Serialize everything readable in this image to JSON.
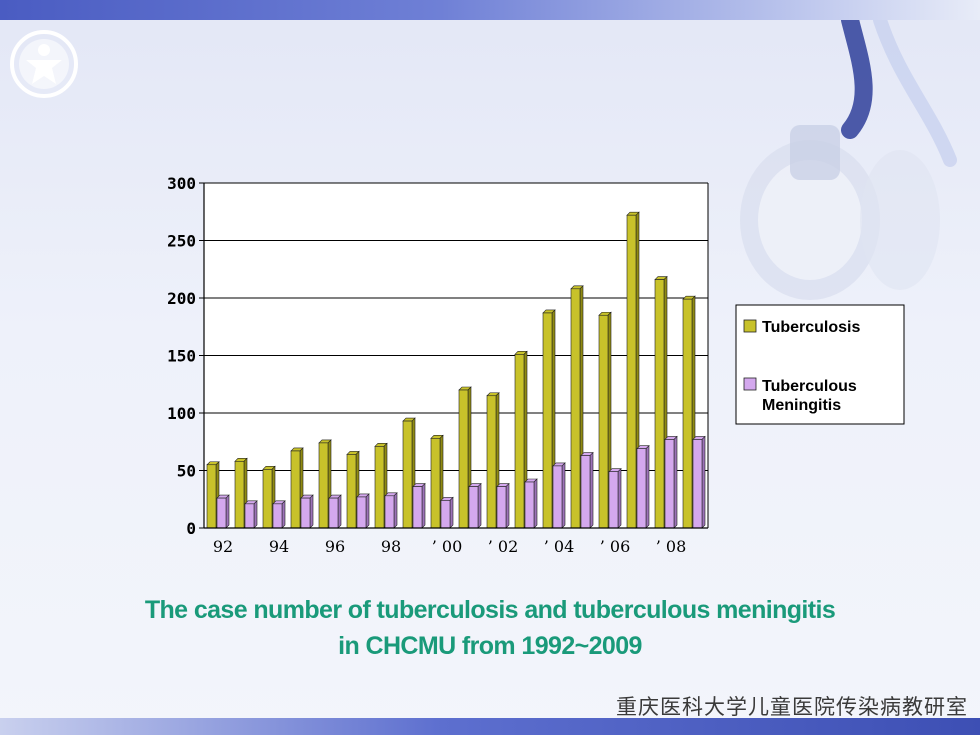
{
  "chart_data": {
    "type": "bar",
    "categories": [
      "92",
      "93",
      "94",
      "95",
      "96",
      "97",
      "98",
      "99",
      "'00",
      "'01",
      "'02",
      "'03",
      "'04",
      "'05",
      "'06",
      "'07",
      "'08",
      "'09"
    ],
    "tick_labels": [
      "92",
      "94",
      "96",
      "98",
      "’ 00",
      "’ 02",
      "’ 04",
      "’ 06",
      "’ 08"
    ],
    "series": [
      {
        "name": "Tuberculosis",
        "values": [
          55,
          58,
          51,
          67,
          74,
          64,
          71,
          93,
          78,
          120,
          115,
          151,
          187,
          208,
          185,
          272,
          216,
          199
        ]
      },
      {
        "name": "Tuberculous Meningitis",
        "values": [
          26,
          21,
          21,
          26,
          26,
          27,
          28,
          36,
          24,
          36,
          36,
          40,
          54,
          63,
          49,
          69,
          77,
          77
        ]
      }
    ],
    "yticks": [
      "0",
      "50",
      "100",
      "150",
      "200",
      "250",
      "300"
    ],
    "ylim": [
      0,
      300
    ],
    "grid": true,
    "legend_position": "right",
    "colors": {
      "tuberculosis": "#c8c22a",
      "meningitis": "#d4a8ee"
    }
  },
  "caption": {
    "line1": "The case number of tuberculosis and tuberculous meningitis",
    "line2": "in CHCMU from 1992~2009"
  },
  "footer_text": "重庆医科大学儿童医院传染病教研室",
  "logo_icon": "child-emblem-icon",
  "decor_icon": "stethoscope-icon"
}
